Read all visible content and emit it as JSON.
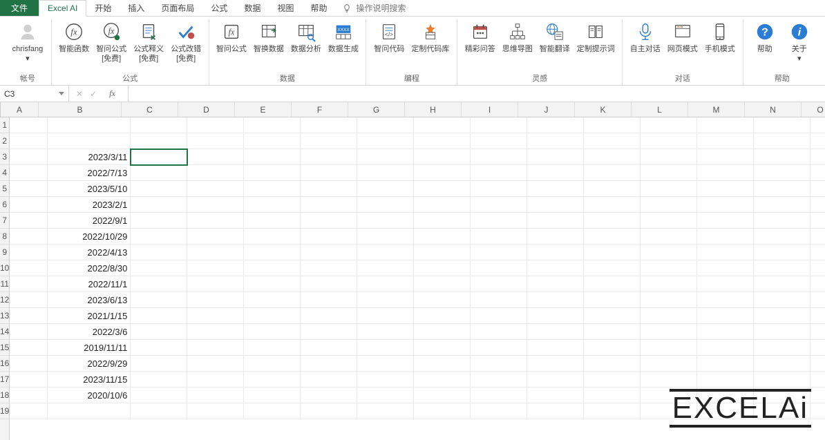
{
  "tabs": {
    "file": "文件",
    "active": "Excel AI",
    "items": [
      "开始",
      "插入",
      "页面布局",
      "公式",
      "数据",
      "视图",
      "帮助"
    ],
    "tell_me": "操作说明搜索"
  },
  "ribbon": {
    "groups": [
      {
        "label": "帐号",
        "items": [
          {
            "name": "account",
            "label": "chrisfang",
            "label2": "▾",
            "icon": "avatar"
          }
        ]
      },
      {
        "label": "公式",
        "items": [
          {
            "name": "smart-fn",
            "label": "智能函数",
            "label2": "",
            "icon": "fx-circle"
          },
          {
            "name": "ask-formula",
            "label": "智问公式",
            "label2": "[免费]",
            "icon": "fx-box"
          },
          {
            "name": "explain-formula",
            "label": "公式释义",
            "label2": "[免费]",
            "icon": "doc-lines"
          },
          {
            "name": "fix-formula",
            "label": "公式改错",
            "label2": "[免费]",
            "icon": "check-red"
          }
        ]
      },
      {
        "label": "数据",
        "items": [
          {
            "name": "ask-formula2",
            "label": "智问公式",
            "label2": "",
            "icon": "fx-square"
          },
          {
            "name": "swap-data",
            "label": "智换数据",
            "label2": "",
            "icon": "table-arrow"
          },
          {
            "name": "data-analyze",
            "label": "数据分析",
            "label2": "",
            "icon": "table-eye"
          },
          {
            "name": "data-gen",
            "label": "数据生成",
            "label2": "",
            "icon": "xxxx"
          }
        ]
      },
      {
        "label": "编程",
        "items": [
          {
            "name": "ask-code",
            "label": "智问代码",
            "label2": "",
            "icon": "code-doc"
          },
          {
            "name": "custom-code",
            "label": "定制代码库",
            "label2": "",
            "icon": "code-star"
          }
        ]
      },
      {
        "label": "灵感",
        "items": [
          {
            "name": "great-qa",
            "label": "精彩问答",
            "label2": "",
            "icon": "calendar"
          },
          {
            "name": "mindmap",
            "label": "思维导图",
            "label2": "",
            "icon": "tree"
          },
          {
            "name": "smart-translate",
            "label": "智能翻译",
            "label2": "",
            "icon": "globe-doc"
          },
          {
            "name": "custom-prompt",
            "label": "定制提示词",
            "label2": "",
            "icon": "book"
          }
        ]
      },
      {
        "label": "对话",
        "items": [
          {
            "name": "self-dialog",
            "label": "自主对话",
            "label2": "",
            "icon": "mic"
          },
          {
            "name": "web-mode",
            "label": "网页模式",
            "label2": "",
            "icon": "web"
          },
          {
            "name": "phone-mode",
            "label": "手机模式",
            "label2": "",
            "icon": "phone"
          }
        ]
      },
      {
        "label": "帮助",
        "items": [
          {
            "name": "help",
            "label": "帮助",
            "label2": "",
            "icon": "help"
          },
          {
            "name": "about",
            "label": "关于",
            "label2": "▾",
            "icon": "info"
          }
        ]
      }
    ]
  },
  "formula_bar": {
    "cell_ref": "C3",
    "fx_label": "fx",
    "value": ""
  },
  "grid": {
    "columns": [
      "A",
      "B",
      "C",
      "D",
      "E",
      "F",
      "G",
      "H",
      "I",
      "J",
      "K",
      "L",
      "M",
      "N",
      "O"
    ],
    "col_widths": {
      "A": 55,
      "B": 120,
      "C": 82,
      "D": 82,
      "E": 82,
      "F": 82,
      "G": 82,
      "H": 82,
      "I": 82,
      "J": 82,
      "K": 82,
      "L": 82,
      "M": 82,
      "N": 82,
      "O": 55
    },
    "row_count": 19,
    "selected": {
      "row": 3,
      "col": "C"
    },
    "data": {
      "B3": "2023/3/11",
      "B4": "2022/7/13",
      "B5": "2023/5/10",
      "B6": "2023/2/1",
      "B7": "2022/9/1",
      "B8": "2022/10/29",
      "B9": "2022/4/13",
      "B10": "2022/8/30",
      "B11": "2022/11/1",
      "B12": "2023/6/13",
      "B13": "2021/1/15",
      "B14": "2022/3/6",
      "B15": "2019/11/11",
      "B16": "2022/9/29",
      "B17": "2023/11/15",
      "B18": "2020/10/6"
    }
  },
  "watermark": {
    "text": "EXCELAi"
  },
  "colors": {
    "accent": "#217346",
    "border": "#d4d4d4",
    "grid_line": "#eaeaea",
    "header_bg": "#f3f3f3"
  }
}
